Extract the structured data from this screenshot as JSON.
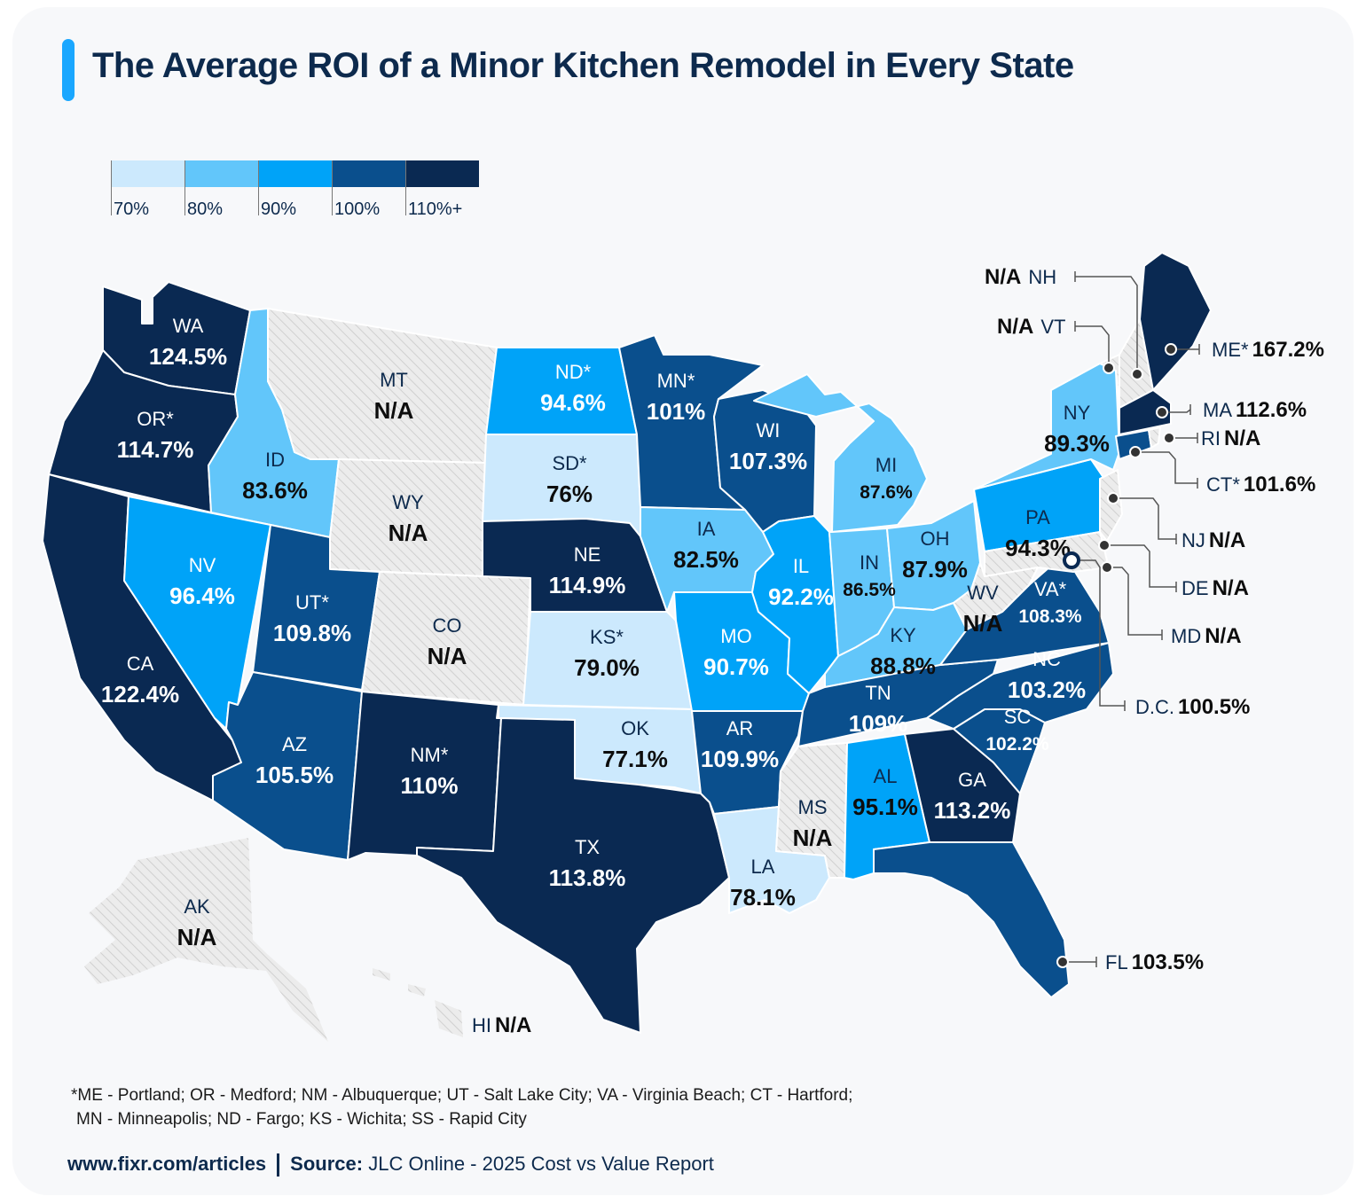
{
  "title": "The Average ROI of a Minor Kitchen Remodel in Every State",
  "colors": {
    "bin70": "#cce9fd",
    "bin80": "#62c6fa",
    "bin90": "#00a3f8",
    "bin100": "#0a4f8d",
    "bin110": "#0a2952",
    "na": "#e9e9e9",
    "accent": "#1aa7ff"
  },
  "legend": {
    "labels": [
      "70%",
      "80%",
      "90%",
      "100%",
      "110%+"
    ]
  },
  "states": [
    {
      "code": "WA",
      "value": "124.5%"
    },
    {
      "code": "OR*",
      "value": "114.7%"
    },
    {
      "code": "CA",
      "value": "122.4%"
    },
    {
      "code": "ID",
      "value": "83.6%"
    },
    {
      "code": "NV",
      "value": "96.4%"
    },
    {
      "code": "MT",
      "value": "N/A"
    },
    {
      "code": "WY",
      "value": "N/A"
    },
    {
      "code": "UT*",
      "value": "109.8%"
    },
    {
      "code": "AZ",
      "value": "105.5%"
    },
    {
      "code": "CO",
      "value": "N/A"
    },
    {
      "code": "NM*",
      "value": "110%"
    },
    {
      "code": "ND*",
      "value": "94.6%"
    },
    {
      "code": "SD*",
      "value": "76%"
    },
    {
      "code": "NE",
      "value": "114.9%"
    },
    {
      "code": "KS*",
      "value": "79.0%"
    },
    {
      "code": "OK",
      "value": "77.1%"
    },
    {
      "code": "TX",
      "value": "113.8%"
    },
    {
      "code": "MN*",
      "value": "101%"
    },
    {
      "code": "IA",
      "value": "82.5%"
    },
    {
      "code": "MO",
      "value": "90.7%"
    },
    {
      "code": "AR",
      "value": "109.9%"
    },
    {
      "code": "LA",
      "value": "78.1%"
    },
    {
      "code": "WI",
      "value": "107.3%"
    },
    {
      "code": "IL",
      "value": "92.2%"
    },
    {
      "code": "MI",
      "value": "87.6%"
    },
    {
      "code": "IN",
      "value": "86.5%"
    },
    {
      "code": "OH",
      "value": "87.9%"
    },
    {
      "code": "KY",
      "value": "88.8%"
    },
    {
      "code": "TN",
      "value": "109%"
    },
    {
      "code": "MS",
      "value": "N/A"
    },
    {
      "code": "AL",
      "value": "95.1%"
    },
    {
      "code": "GA",
      "value": "113.2%"
    },
    {
      "code": "SC",
      "value": "102.2%"
    },
    {
      "code": "NC",
      "value": "103.2%"
    },
    {
      "code": "VA*",
      "value": "108.3%"
    },
    {
      "code": "WV",
      "value": "N/A"
    },
    {
      "code": "PA",
      "value": "94.3%"
    },
    {
      "code": "NY",
      "value": "89.3%"
    },
    {
      "code": "AK",
      "value": "N/A"
    }
  ],
  "callouts": [
    {
      "code": "NH",
      "value": "N/A"
    },
    {
      "code": "VT",
      "value": "N/A"
    },
    {
      "code": "ME*",
      "value": "167.2%"
    },
    {
      "code": "MA",
      "value": "112.6%"
    },
    {
      "code": "RI",
      "value": "N/A"
    },
    {
      "code": "CT*",
      "value": "101.6%"
    },
    {
      "code": "NJ",
      "value": "N/A"
    },
    {
      "code": "DE",
      "value": "N/A"
    },
    {
      "code": "MD",
      "value": "N/A"
    },
    {
      "code": "D.C.",
      "value": "100.5%"
    },
    {
      "code": "FL",
      "value": "103.5%"
    },
    {
      "code": "HI",
      "value": "N/A"
    }
  ],
  "footnote": {
    "line1": "*ME - Portland; OR - Medford; NM - Albuquerque; UT - Salt Lake City; VA - Virginia Beach; CT - Hartford;",
    "line2": "MN - Minneapolis; ND - Fargo; KS - Wichita; SS - Rapid City"
  },
  "footer": {
    "site": "www.fixr.com/articles",
    "source_label": "Source:",
    "source_text": "JLC Online - 2025 Cost vs Value Report"
  }
}
